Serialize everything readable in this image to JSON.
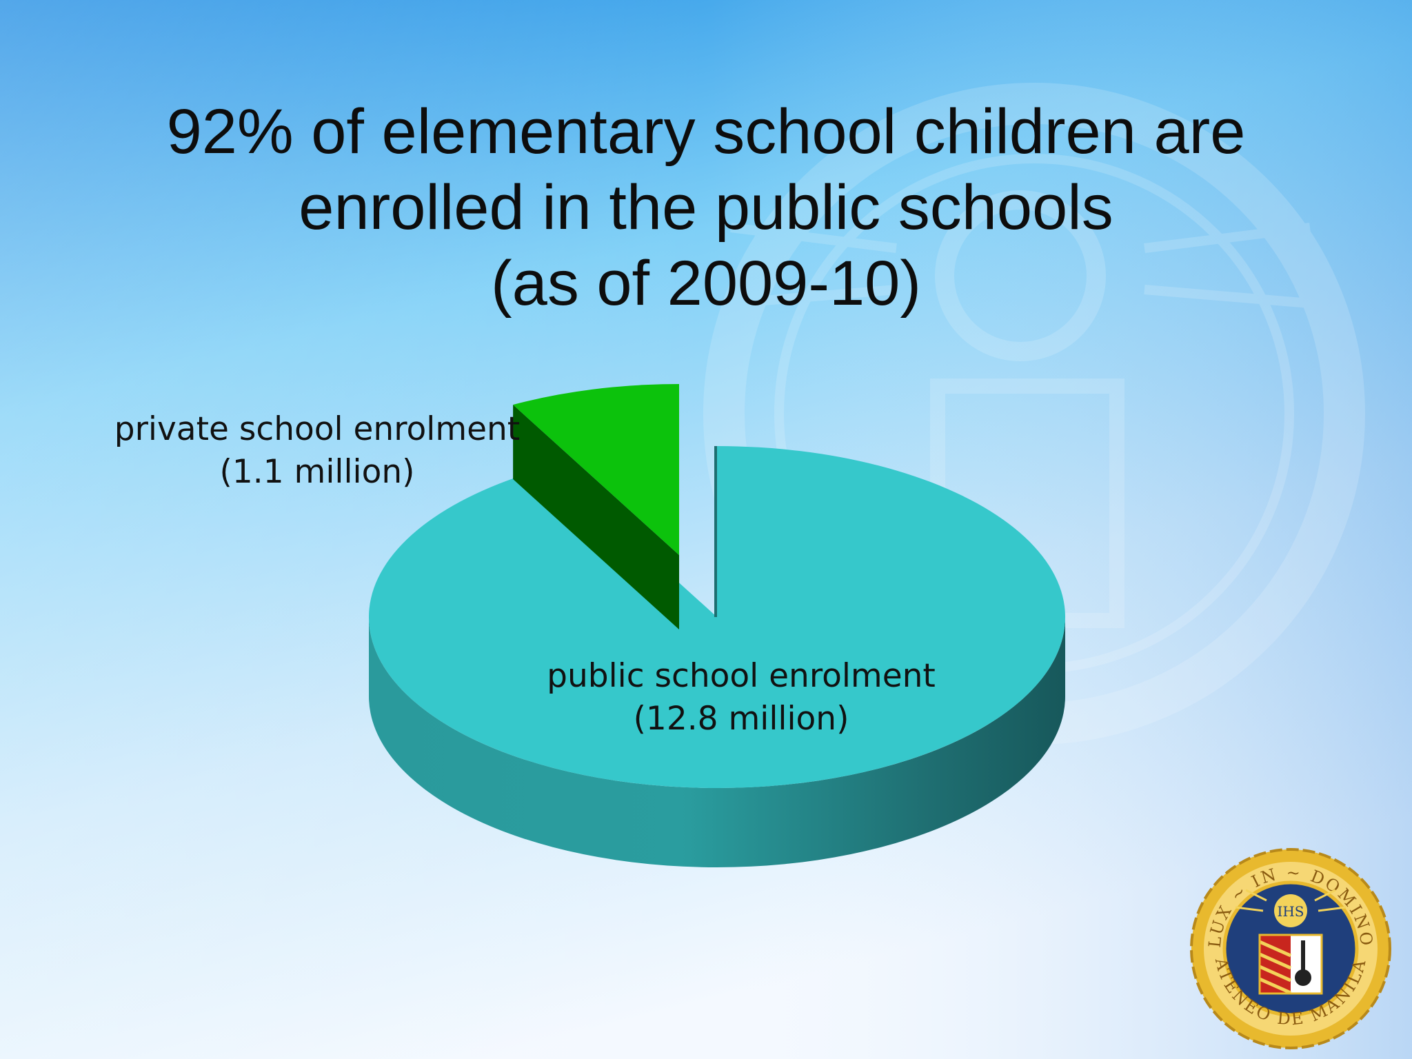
{
  "slide": {
    "title_lines": [
      "92% of elementary school children are",
      "enrolled in the public schools",
      "(as of 2009-10)"
    ]
  },
  "chart_data": {
    "type": "pie",
    "title": "92% of elementary school children are enrolled in the public schools (as of 2009-10)",
    "three_d": true,
    "exploded_slice": "private school enrolment",
    "slices": [
      {
        "label": "public school enrolment",
        "value_text": "(12.8 million)",
        "value": 12.8,
        "unit": "million",
        "color": "#36c8cb"
      },
      {
        "label": "private school enrolment",
        "value_text": "(1.1 million)",
        "value": 1.1,
        "unit": "million",
        "color": "#0cc20c"
      }
    ]
  },
  "logo": {
    "ring_text_top": "LUX ~ IN ~ DOMINO",
    "ring_text_bottom": "ATENEO DE MANILA",
    "monogram": "IHS"
  },
  "colors": {
    "background_top": "#1e96e8",
    "background_bottom": "#f2f8ff",
    "public_slice": "#36c8cb",
    "private_slice": "#0cc20c",
    "seal_gold": "#e8b92e",
    "seal_navy": "#1f3f7c",
    "seal_red": "#c8261e"
  }
}
